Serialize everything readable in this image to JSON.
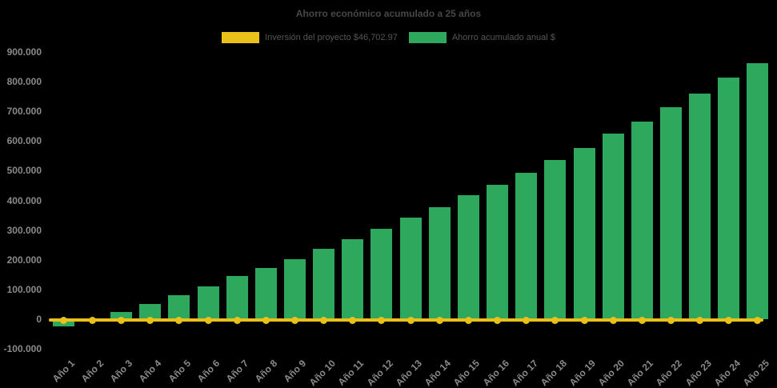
{
  "title": "Ahorro económico acumulado a 25 años",
  "colors": {
    "background": "#000000",
    "bar_green": "#2DA85C",
    "line_yellow": "#E9C11A",
    "title_text": "#474747",
    "legend_text": "#565656",
    "tick_text": "#8a8a8a"
  },
  "legend": {
    "items": [
      {
        "label": "Inversión del proyecto $46,702.97",
        "color": "#E9C11A",
        "marker": "line-swatch"
      },
      {
        "label": "Ahorro acumulado anual $",
        "color": "#2DA85C",
        "marker": "bar-swatch"
      }
    ]
  },
  "chart_data": {
    "type": "bar",
    "title": "Ahorro económico acumulado a 25 años",
    "xlabel": "",
    "ylabel": "",
    "ylim": [
      -100000,
      900000
    ],
    "ytick_step": 100000,
    "ytick_labels": [
      "900.000",
      "800.000",
      "700.000",
      "600.000",
      "500.000",
      "400.000",
      "300.000",
      "200.000",
      "100.000",
      "0",
      "-100.000"
    ],
    "grid": false,
    "legend_position": "top-center",
    "categories": [
      "Año 1",
      "Año 2",
      "Año 3",
      "Año 4",
      "Año 5",
      "Año 6",
      "Año 7",
      "Año 8",
      "Año 9",
      "Año 10",
      "Año 11",
      "Año 12",
      "Año 13",
      "Año 14",
      "Año 15",
      "Año 16",
      "Año 17",
      "Año 18",
      "Año 19",
      "Año 20",
      "Año 21",
      "Año 22",
      "Año 23",
      "Año 24",
      "Año 25"
    ],
    "series": [
      {
        "name": "Inversión del proyecto $46,702.97",
        "type": "line",
        "color": "#E9C11A",
        "values": [
          0,
          0,
          0,
          0,
          0,
          0,
          0,
          0,
          0,
          0,
          0,
          0,
          0,
          0,
          0,
          0,
          0,
          0,
          0,
          0,
          0,
          0,
          0,
          0,
          0
        ]
      },
      {
        "name": "Ahorro acumulado anual $",
        "type": "bar",
        "color": "#2DA85C",
        "values": [
          -25000,
          1000,
          26000,
          53000,
          82000,
          112000,
          147000,
          174000,
          204000,
          239000,
          271000,
          306000,
          344000,
          379000,
          419000,
          455000,
          495000,
          538000,
          578000,
          626000,
          668000,
          715000,
          763000,
          815000,
          864000
        ]
      }
    ]
  }
}
